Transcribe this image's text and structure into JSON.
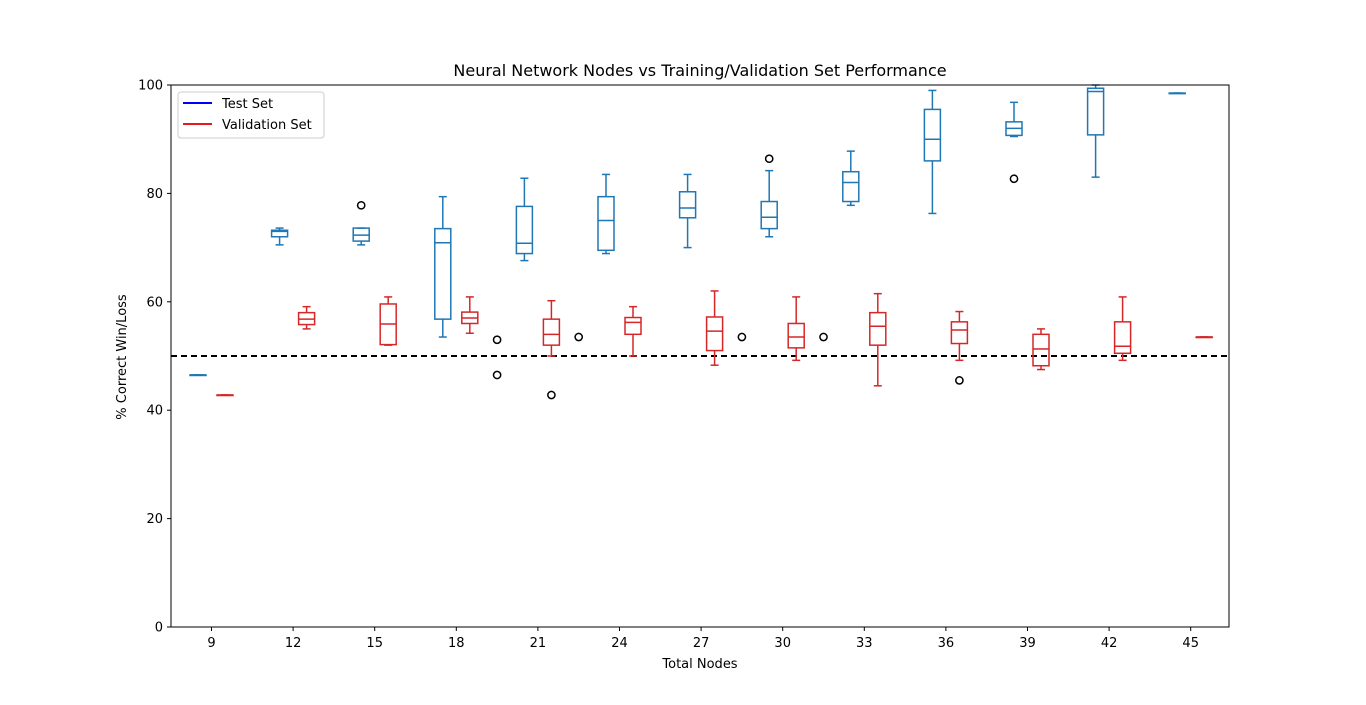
{
  "chart_data": {
    "type": "box",
    "title": "Neural Network Nodes vs Training/Validation Set Performance",
    "xlabel": "Total Nodes",
    "ylabel": "% Correct Win/Loss",
    "ylim": [
      0,
      100
    ],
    "yticks": [
      0,
      20,
      40,
      60,
      80,
      100
    ],
    "categories": [
      "9",
      "12",
      "15",
      "18",
      "21",
      "24",
      "27",
      "30",
      "33",
      "36",
      "39",
      "42",
      "45"
    ],
    "reference_line": {
      "y": 50,
      "style": "dashed",
      "color": "#000000"
    },
    "legend": {
      "position": "top-left",
      "entries": [
        {
          "label": "Test Set",
          "color": "#0000ff"
        },
        {
          "label": "Validation Set",
          "color": "#e31a1c"
        }
      ]
    },
    "series": [
      {
        "name": "Test Set",
        "color": "#1f77b4",
        "boxes": [
          {
            "whislo": 46.5,
            "q1": 46.5,
            "med": 46.5,
            "q3": 46.5,
            "whishi": 46.5,
            "fliers": []
          },
          {
            "whislo": 70.5,
            "q1": 72.0,
            "med": 73.0,
            "q3": 73.2,
            "whishi": 73.6,
            "fliers": []
          },
          {
            "whislo": 70.5,
            "q1": 71.2,
            "med": 72.3,
            "q3": 73.6,
            "whishi": 73.6,
            "fliers": [
              77.8
            ]
          },
          {
            "whislo": 53.5,
            "q1": 56.8,
            "med": 70.9,
            "q3": 73.5,
            "whishi": 79.4,
            "fliers": []
          },
          {
            "whislo": 67.6,
            "q1": 68.9,
            "med": 70.8,
            "q3": 77.6,
            "whishi": 82.8,
            "fliers": []
          },
          {
            "whislo": 68.9,
            "q1": 69.5,
            "med": 75.0,
            "q3": 79.4,
            "whishi": 83.5,
            "fliers": []
          },
          {
            "whislo": 70.0,
            "q1": 75.5,
            "med": 77.3,
            "q3": 80.3,
            "whishi": 83.5,
            "fliers": []
          },
          {
            "whislo": 72.0,
            "q1": 73.5,
            "med": 75.6,
            "q3": 78.5,
            "whishi": 84.2,
            "fliers": [
              86.4
            ]
          },
          {
            "whislo": 77.8,
            "q1": 78.5,
            "med": 82.0,
            "q3": 84.0,
            "whishi": 87.8,
            "fliers": []
          },
          {
            "whislo": 76.3,
            "q1": 86.0,
            "med": 90.0,
            "q3": 95.5,
            "whishi": 99.0,
            "fliers": []
          },
          {
            "whislo": 90.5,
            "q1": 90.7,
            "med": 92.0,
            "q3": 93.2,
            "whishi": 96.8,
            "fliers": [
              82.7
            ]
          },
          {
            "whislo": 83.0,
            "q1": 90.8,
            "med": 98.8,
            "q3": 99.4,
            "whishi": 100.0,
            "fliers": []
          },
          {
            "whislo": 98.5,
            "q1": 98.5,
            "med": 98.5,
            "q3": 98.5,
            "whishi": 98.5,
            "fliers": []
          }
        ]
      },
      {
        "name": "Validation Set",
        "color": "#d62728",
        "boxes": [
          {
            "whislo": 42.8,
            "q1": 42.8,
            "med": 42.8,
            "q3": 42.8,
            "whishi": 42.8,
            "fliers": []
          },
          {
            "whislo": 55.0,
            "q1": 55.8,
            "med": 56.8,
            "q3": 58.0,
            "whishi": 59.1,
            "fliers": []
          },
          {
            "whislo": 52.0,
            "q1": 52.1,
            "med": 55.9,
            "q3": 59.6,
            "whishi": 60.9,
            "fliers": []
          },
          {
            "whislo": 54.2,
            "q1": 56.0,
            "med": 57.0,
            "q3": 58.1,
            "whishi": 60.9,
            "fliers": []
          },
          {
            "whislo": 50.0,
            "q1": 52.0,
            "med": 54.0,
            "q3": 56.8,
            "whishi": 60.2,
            "fliers": [
              42.8
            ]
          },
          {
            "whislo": 50.0,
            "q1": 54.0,
            "med": 56.2,
            "q3": 57.1,
            "whishi": 59.1,
            "fliers": []
          },
          {
            "whislo": 48.3,
            "q1": 51.0,
            "med": 54.6,
            "q3": 57.2,
            "whishi": 62.0,
            "fliers": []
          },
          {
            "whislo": 49.2,
            "q1": 51.5,
            "med": 53.5,
            "q3": 56.0,
            "whishi": 60.9,
            "fliers": []
          },
          {
            "whislo": 44.5,
            "q1": 52.0,
            "med": 55.5,
            "q3": 58.0,
            "whishi": 61.5,
            "fliers": []
          },
          {
            "whislo": 49.2,
            "q1": 52.3,
            "med": 54.8,
            "q3": 56.3,
            "whishi": 58.2,
            "fliers": [
              45.5
            ]
          },
          {
            "whislo": 47.5,
            "q1": 48.2,
            "med": 51.3,
            "q3": 54.0,
            "whishi": 55.0,
            "fliers": []
          },
          {
            "whislo": 49.2,
            "q1": 50.5,
            "med": 51.8,
            "q3": 56.3,
            "whishi": 60.9,
            "fliers": []
          },
          {
            "whislo": 53.5,
            "q1": 53.5,
            "med": 53.5,
            "q3": 53.5,
            "whishi": 53.5,
            "fliers": []
          }
        ]
      }
    ],
    "extra_fliers": [
      {
        "x_between": [
          "18",
          "21"
        ],
        "values": [
          53.0,
          46.5
        ]
      },
      {
        "x_between": [
          "21",
          "24"
        ],
        "values": [
          53.5
        ]
      },
      {
        "x_between": [
          "27",
          "30"
        ],
        "values": [
          53.5
        ]
      },
      {
        "x_between": [
          "30",
          "33"
        ],
        "values": [
          53.5
        ]
      }
    ]
  }
}
